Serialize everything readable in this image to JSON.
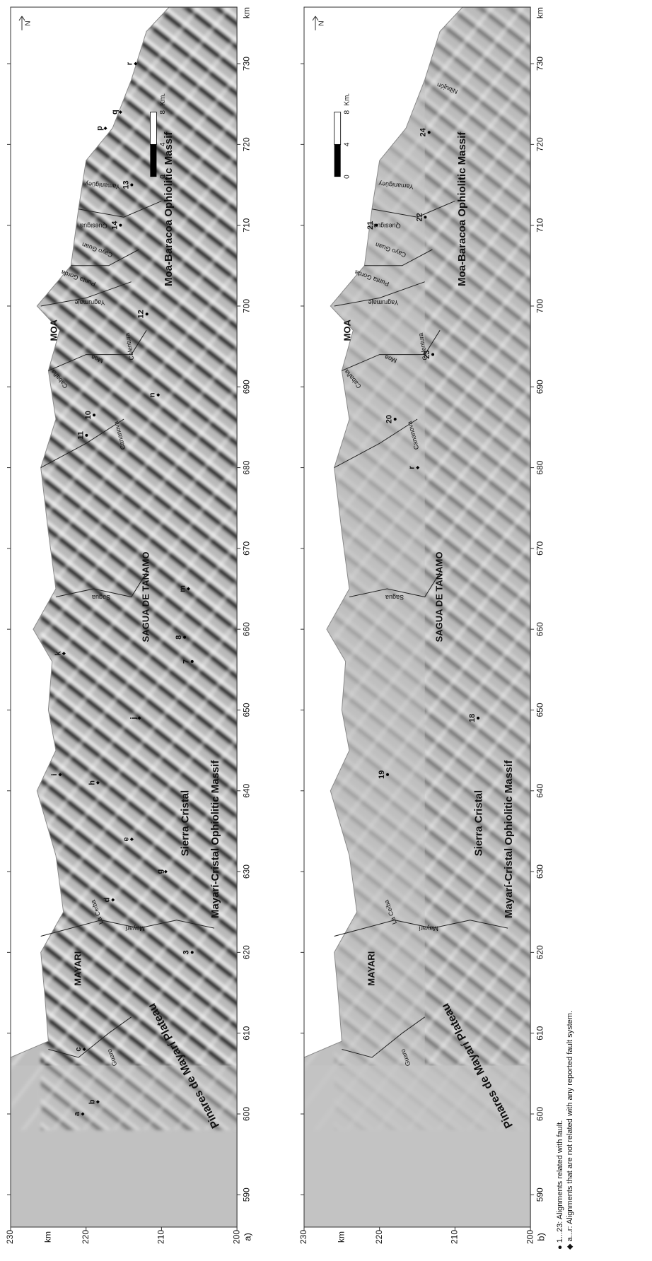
{
  "axes": {
    "xticks": [
      590,
      600,
      610,
      620,
      630,
      640,
      650,
      660,
      670,
      680,
      690,
      700,
      710,
      720,
      730
    ],
    "yticks": [
      230,
      220,
      210,
      200
    ],
    "unit": "km"
  },
  "north": "N",
  "scale": {
    "ticks": [
      0,
      4,
      8
    ],
    "unit": "Km."
  },
  "panels": [
    {
      "label": "a)",
      "places": [
        "MAYARI",
        "Pinares de Mayarí Plateau",
        "La Ceiba",
        "Mayarí",
        "Guaro",
        "Sierra Cristal",
        "Mayarí-Cristal Ophiolitic Massif",
        "SAGUA DE TANAMO",
        "Sagua",
        "Cananova",
        "MOA",
        "Cabaña",
        "Moa",
        "Calentura",
        "Yagrumaje",
        "Punta Gorda",
        "Cayo Guan",
        "Quesigua",
        "Yamanigüey",
        "Moa-Baracoa Ophiolitic Massif"
      ],
      "points": [
        "a",
        "b",
        "c",
        "d",
        "e",
        "g",
        "h",
        "i",
        "j",
        "k",
        "m",
        "n",
        "p",
        "q",
        "r",
        "3",
        "7",
        "8",
        "10",
        "11",
        "12",
        "13",
        "14"
      ]
    },
    {
      "label": "b)",
      "places": [
        "MAYARI",
        "Pinares de Mayarí Plateau",
        "La Ceiba",
        "Mayarí",
        "Guaro",
        "Sierra Cristal",
        "Mayarí-Cristal Ophiolitic Massif",
        "SAGUA DE TANAMO",
        "Sagua",
        "Cananova",
        "MOA",
        "Cabaña",
        "Moa",
        "Calentura",
        "Yagrumaje",
        "Punta Gorda",
        "Cayo Guan",
        "Quesigua",
        "Yamanigüey",
        "Moa-Baracoa Ophiolitic Massif",
        "Nibujón"
      ],
      "points": [
        "18",
        "19",
        "20",
        "21",
        "22",
        "23",
        "24",
        "r"
      ]
    }
  ],
  "legend": [
    "● 1...23: Alignments related with fault.",
    "◆ a...r: Alignments that are not related with any reported fault system."
  ]
}
